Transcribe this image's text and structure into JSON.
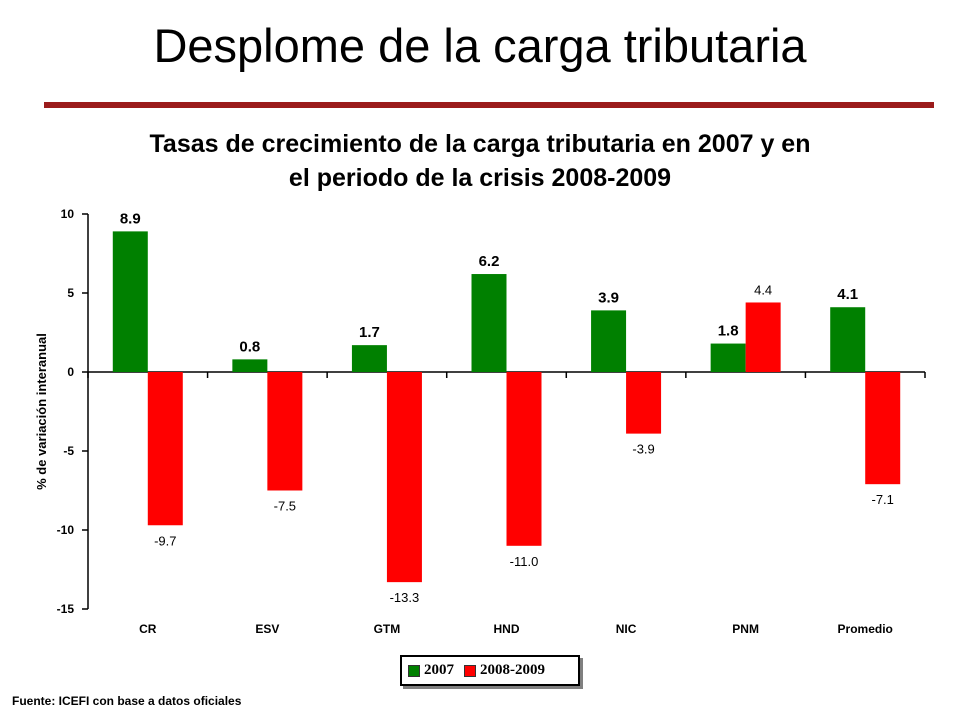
{
  "slide_title": "Desplome de la carga tributaria",
  "source_note": "Fuente: ICEFI con base a datos oficiales",
  "chart_data": {
    "type": "bar",
    "title_line1": "Tasas de crecimiento de la carga tributaria en 2007  y en",
    "title_line2": "el periodo de la crisis 2008-2009",
    "ylabel": "% de variación interanual",
    "xlabel": "",
    "ylim": [
      -15,
      10
    ],
    "yticks": [
      10,
      5,
      0,
      -5,
      -10,
      -15
    ],
    "categories": [
      "CR",
      "ESV",
      "GTM",
      "HND",
      "NIC",
      "PNM",
      "Promedio"
    ],
    "series": [
      {
        "name": "2007",
        "color": "#008000",
        "values": [
          8.9,
          0.8,
          1.7,
          6.2,
          3.9,
          1.8,
          4.1
        ],
        "labels": [
          "8.9",
          "0.8",
          "1.7",
          "6.2",
          "3.9",
          "1.8",
          "4.1"
        ]
      },
      {
        "name": "2008-2009",
        "color": "#ff0000",
        "values": [
          -9.7,
          -7.5,
          -13.3,
          -11.0,
          -3.9,
          4.4,
          -7.1
        ],
        "labels": [
          "-9.7",
          "-7.5",
          "-13.3",
          "-11.0",
          "-3.9",
          "4.4",
          "-7.1"
        ]
      }
    ],
    "grid": false,
    "legend_position": "bottom"
  }
}
